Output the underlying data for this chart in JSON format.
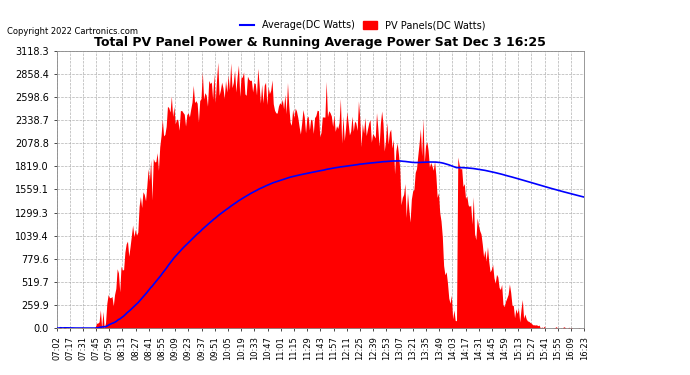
{
  "title": "Total PV Panel Power & Running Average Power Sat Dec 3 16:25",
  "copyright": "Copyright 2022 Cartronics.com",
  "legend_avg": "Average(DC Watts)",
  "legend_pv": "PV Panels(DC Watts)",
  "ymin": 0.0,
  "ymax": 3118.3,
  "yticks": [
    0.0,
    259.9,
    519.7,
    779.6,
    1039.4,
    1299.3,
    1559.1,
    1819.0,
    2078.8,
    2338.7,
    2598.6,
    2858.4,
    3118.3
  ],
  "bg_color": "#ffffff",
  "plot_bg_color": "#ffffff",
  "grid_color": "#aaaaaa",
  "pv_color": "#ff0000",
  "avg_color": "#0000ff",
  "xtick_labels": [
    "07:02",
    "07:17",
    "07:31",
    "07:45",
    "07:59",
    "08:13",
    "08:27",
    "08:41",
    "08:55",
    "09:09",
    "09:23",
    "09:37",
    "09:51",
    "10:05",
    "10:19",
    "10:33",
    "10:47",
    "11:01",
    "11:15",
    "11:29",
    "11:43",
    "11:57",
    "12:11",
    "12:25",
    "12:39",
    "12:53",
    "13:07",
    "13:21",
    "13:35",
    "13:49",
    "14:03",
    "14:17",
    "14:31",
    "14:45",
    "14:59",
    "15:13",
    "15:27",
    "15:41",
    "15:55",
    "16:09",
    "16:23"
  ],
  "n_points": 410
}
